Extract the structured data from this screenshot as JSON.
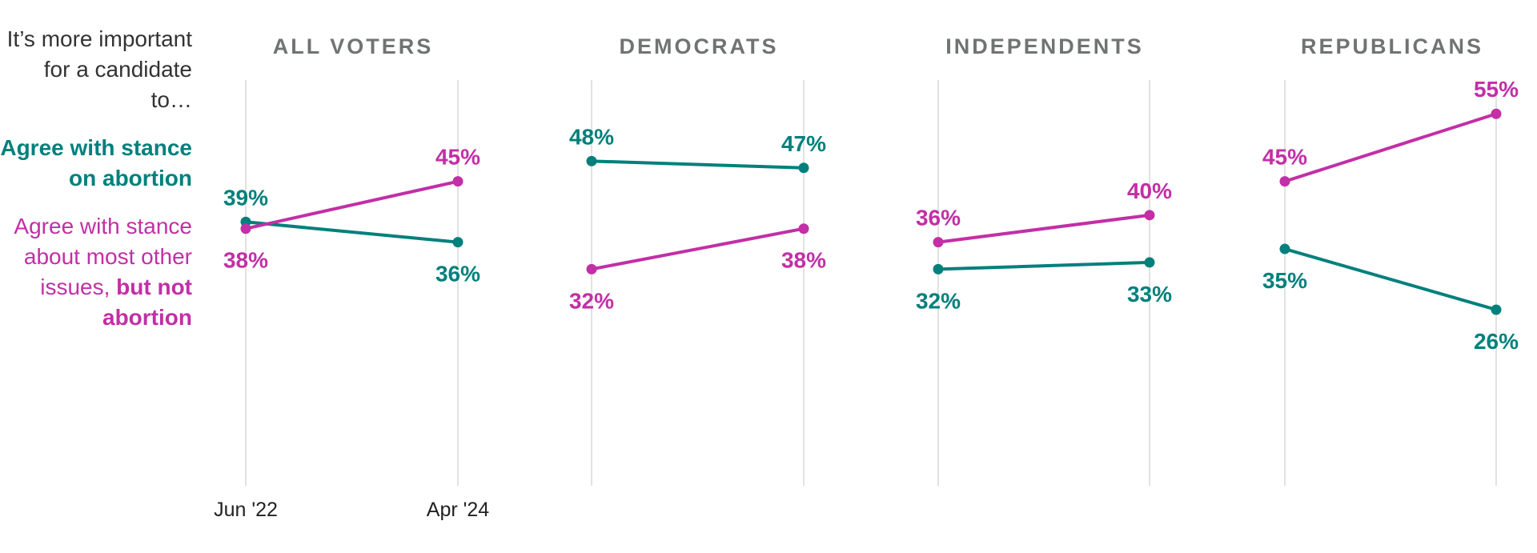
{
  "legend": {
    "intro": "It’s more important for a candidate to…",
    "series1": "Agree with stance on abortion",
    "series2_prefix": "Agree with stance about most other issues, ",
    "series2_bold": "but not abortion"
  },
  "colors": {
    "series1": "#00807c",
    "series2": "#c22fa6",
    "gridline": "#d9d9d9",
    "title": "#6f7472"
  },
  "chart_data": {
    "type": "line",
    "x": [
      "Jun '22",
      "Apr '24"
    ],
    "x_tick_labels_shown_on": "ALL VOTERS",
    "ylim": [
      20,
      60
    ],
    "grid": "vertical lines at each date",
    "series_names": [
      "Agree with stance on abortion",
      "Agree with stance about most other issues, but not abortion"
    ],
    "panels": [
      {
        "title": "ALL VOTERS",
        "series": [
          {
            "name": "Agree with stance on abortion",
            "values": [
              39,
              36
            ]
          },
          {
            "name": "Agree with stance about most other issues, but not abortion",
            "values": [
              38,
              45
            ]
          }
        ]
      },
      {
        "title": "DEMOCRATS",
        "series": [
          {
            "name": "Agree with stance on abortion",
            "values": [
              48,
              47
            ]
          },
          {
            "name": "Agree with stance about most other issues, but not abortion",
            "values": [
              32,
              38
            ]
          }
        ]
      },
      {
        "title": "INDEPENDENTS",
        "series": [
          {
            "name": "Agree with stance on abortion",
            "values": [
              32,
              33
            ]
          },
          {
            "name": "Agree with stance about most other issues, but not abortion",
            "values": [
              36,
              40
            ]
          }
        ]
      },
      {
        "title": "REPUBLICANS",
        "series": [
          {
            "name": "Agree with stance on abortion",
            "values": [
              35,
              26
            ]
          },
          {
            "name": "Agree with stance about most other issues, but not abortion",
            "values": [
              45,
              55
            ]
          }
        ]
      }
    ]
  }
}
